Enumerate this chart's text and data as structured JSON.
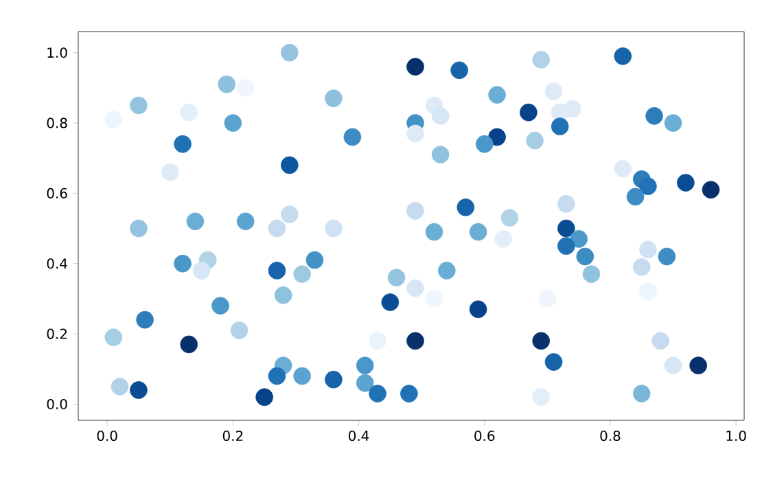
{
  "chart_data": {
    "type": "scatter",
    "xlim": [
      -0.046,
      1.013
    ],
    "ylim": [
      -0.046,
      1.06
    ],
    "xticks": [
      {
        "value": 0,
        "label": "0.0"
      },
      {
        "value": 0.2,
        "label": "0.2"
      },
      {
        "value": 0.4,
        "label": "0.4"
      },
      {
        "value": 0.6,
        "label": "0.6"
      },
      {
        "value": 0.8,
        "label": "0.8"
      },
      {
        "value": 1,
        "label": "1.0"
      }
    ],
    "yticks": [
      {
        "value": 0,
        "label": "0.0"
      },
      {
        "value": 0.2,
        "label": "0.2"
      },
      {
        "value": 0.4,
        "label": "0.4"
      },
      {
        "value": 0.6,
        "label": "0.6"
      },
      {
        "value": 0.8,
        "label": "0.8"
      },
      {
        "value": 1,
        "label": "1.0"
      }
    ],
    "x": [
      0.01,
      0.05,
      0.13,
      0.12,
      0.1,
      0.19,
      0.22,
      0.2,
      0.29,
      0.29,
      0.36,
      0.39,
      0.49,
      0.49,
      0.05,
      0.14,
      0.22,
      0.29,
      0.27,
      0.36,
      0.49,
      0.12,
      0.16,
      0.15,
      0.27,
      0.31,
      0.33,
      0.28,
      0.46,
      0.49,
      0.45,
      0.18,
      0.06,
      0.01,
      0.13,
      0.21,
      0.43,
      0.49,
      0.28,
      0.27,
      0.31,
      0.41,
      0.41,
      0.02,
      0.05,
      0.25,
      0.36,
      0.43,
      0.48,
      0.56,
      0.69,
      0.82,
      0.62,
      0.71,
      0.52,
      0.53,
      0.49,
      0.67,
      0.72,
      0.74,
      0.72,
      0.62,
      0.6,
      0.68,
      0.53,
      0.87,
      0.9,
      0.82,
      0.85,
      0.86,
      0.84,
      0.92,
      0.96,
      0.57,
      0.73,
      0.64,
      0.52,
      0.59,
      0.63,
      0.73,
      0.75,
      0.73,
      0.76,
      0.77,
      0.86,
      0.89,
      0.85,
      0.86,
      0.54,
      0.52,
      0.7,
      0.59,
      0.69,
      0.71,
      0.88,
      0.9,
      0.94,
      0.69,
      0.85
    ],
    "values": [
      0.81,
      0.85,
      0.83,
      0.74,
      0.66,
      0.91,
      0.9,
      0.8,
      1.0,
      0.68,
      0.87,
      0.76,
      0.96,
      0.8,
      0.5,
      0.52,
      0.52,
      0.54,
      0.5,
      0.5,
      0.55,
      0.4,
      0.41,
      0.38,
      0.38,
      0.37,
      0.41,
      0.31,
      0.36,
      0.33,
      0.29,
      0.28,
      0.24,
      0.19,
      0.17,
      0.21,
      0.18,
      0.18,
      0.11,
      0.08,
      0.08,
      0.11,
      0.06,
      0.05,
      0.04,
      0.02,
      0.07,
      0.03,
      0.03,
      0.95,
      0.98,
      0.99,
      0.88,
      0.89,
      0.85,
      0.82,
      0.77,
      0.83,
      0.83,
      0.84,
      0.79,
      0.76,
      0.74,
      0.75,
      0.71,
      0.82,
      0.8,
      0.67,
      0.64,
      0.62,
      0.59,
      0.63,
      0.61,
      0.56,
      0.57,
      0.53,
      0.49,
      0.49,
      0.47,
      0.5,
      0.47,
      0.45,
      0.42,
      0.37,
      0.44,
      0.42,
      0.39,
      0.32,
      0.38,
      0.3,
      0.3,
      0.27,
      0.18,
      0.12,
      0.18,
      0.11,
      0.11,
      0.02,
      0.03
    ],
    "colors": [
      "#eef5fc",
      "#94c4df",
      "#e3eef9",
      "#2171b5",
      "#deebf7",
      "#8dc1dd",
      "#f0f6fd",
      "#5ba3d0",
      "#94c4df",
      "#0d57a1",
      "#8dc1dd",
      "#3d8dc4",
      "#08306b",
      "#4292c6",
      "#94c4df",
      "#6aaed6",
      "#5ba3d0",
      "#c6dbef",
      "#c6dbef",
      "#cfe1f2",
      "#c6dbef",
      "#4a98c9",
      "#b2d2e8",
      "#d6e6f4",
      "#1764ab",
      "#9ecae1",
      "#4292c6",
      "#8fc2de",
      "#94c4df",
      "#d6e6f4",
      "#0b4d94",
      "#4a98c9",
      "#2d7dbb",
      "#a6cee4",
      "#08306b",
      "#b2d2e8",
      "#eaf3fb",
      "#08306b",
      "#6aaed6",
      "#2171b5",
      "#5ba3d0",
      "#4a98c9",
      "#5ba3d0",
      "#b2d2e8",
      "#0b4d94",
      "#08428a",
      "#1764ab",
      "#2171b5",
      "#2171b5",
      "#1764ab",
      "#b2d2e8",
      "#1764ab",
      "#6aaed6",
      "#deebf7",
      "#deebf7",
      "#d6e6f4",
      "#deebf7",
      "#08428a",
      "#deebf7",
      "#deebf7",
      "#2171b5",
      "#08428a",
      "#4a98c9",
      "#a6cee4",
      "#8fc2de",
      "#2d7dbb",
      "#6aaed6",
      "#deebf7",
      "#2d7dbb",
      "#2171b5",
      "#3d8dc4",
      "#0b4d94",
      "#08306b",
      "#1764ab",
      "#c6dbef",
      "#b2d2e8",
      "#6aaed6",
      "#6aaed6",
      "#e3eef9",
      "#0b4d94",
      "#4a98c9",
      "#2171b5",
      "#3d8dc4",
      "#8fc2de",
      "#cfe1f2",
      "#3d8dc4",
      "#c6dbef",
      "#edf4fb",
      "#6aaed6",
      "#f0f6fd",
      "#eef5fc",
      "#08428a",
      "#08306b",
      "#1764ab",
      "#c6dbef",
      "#d6e6f4",
      "#08306b",
      "#e3eef9",
      "#7cb7da"
    ]
  }
}
